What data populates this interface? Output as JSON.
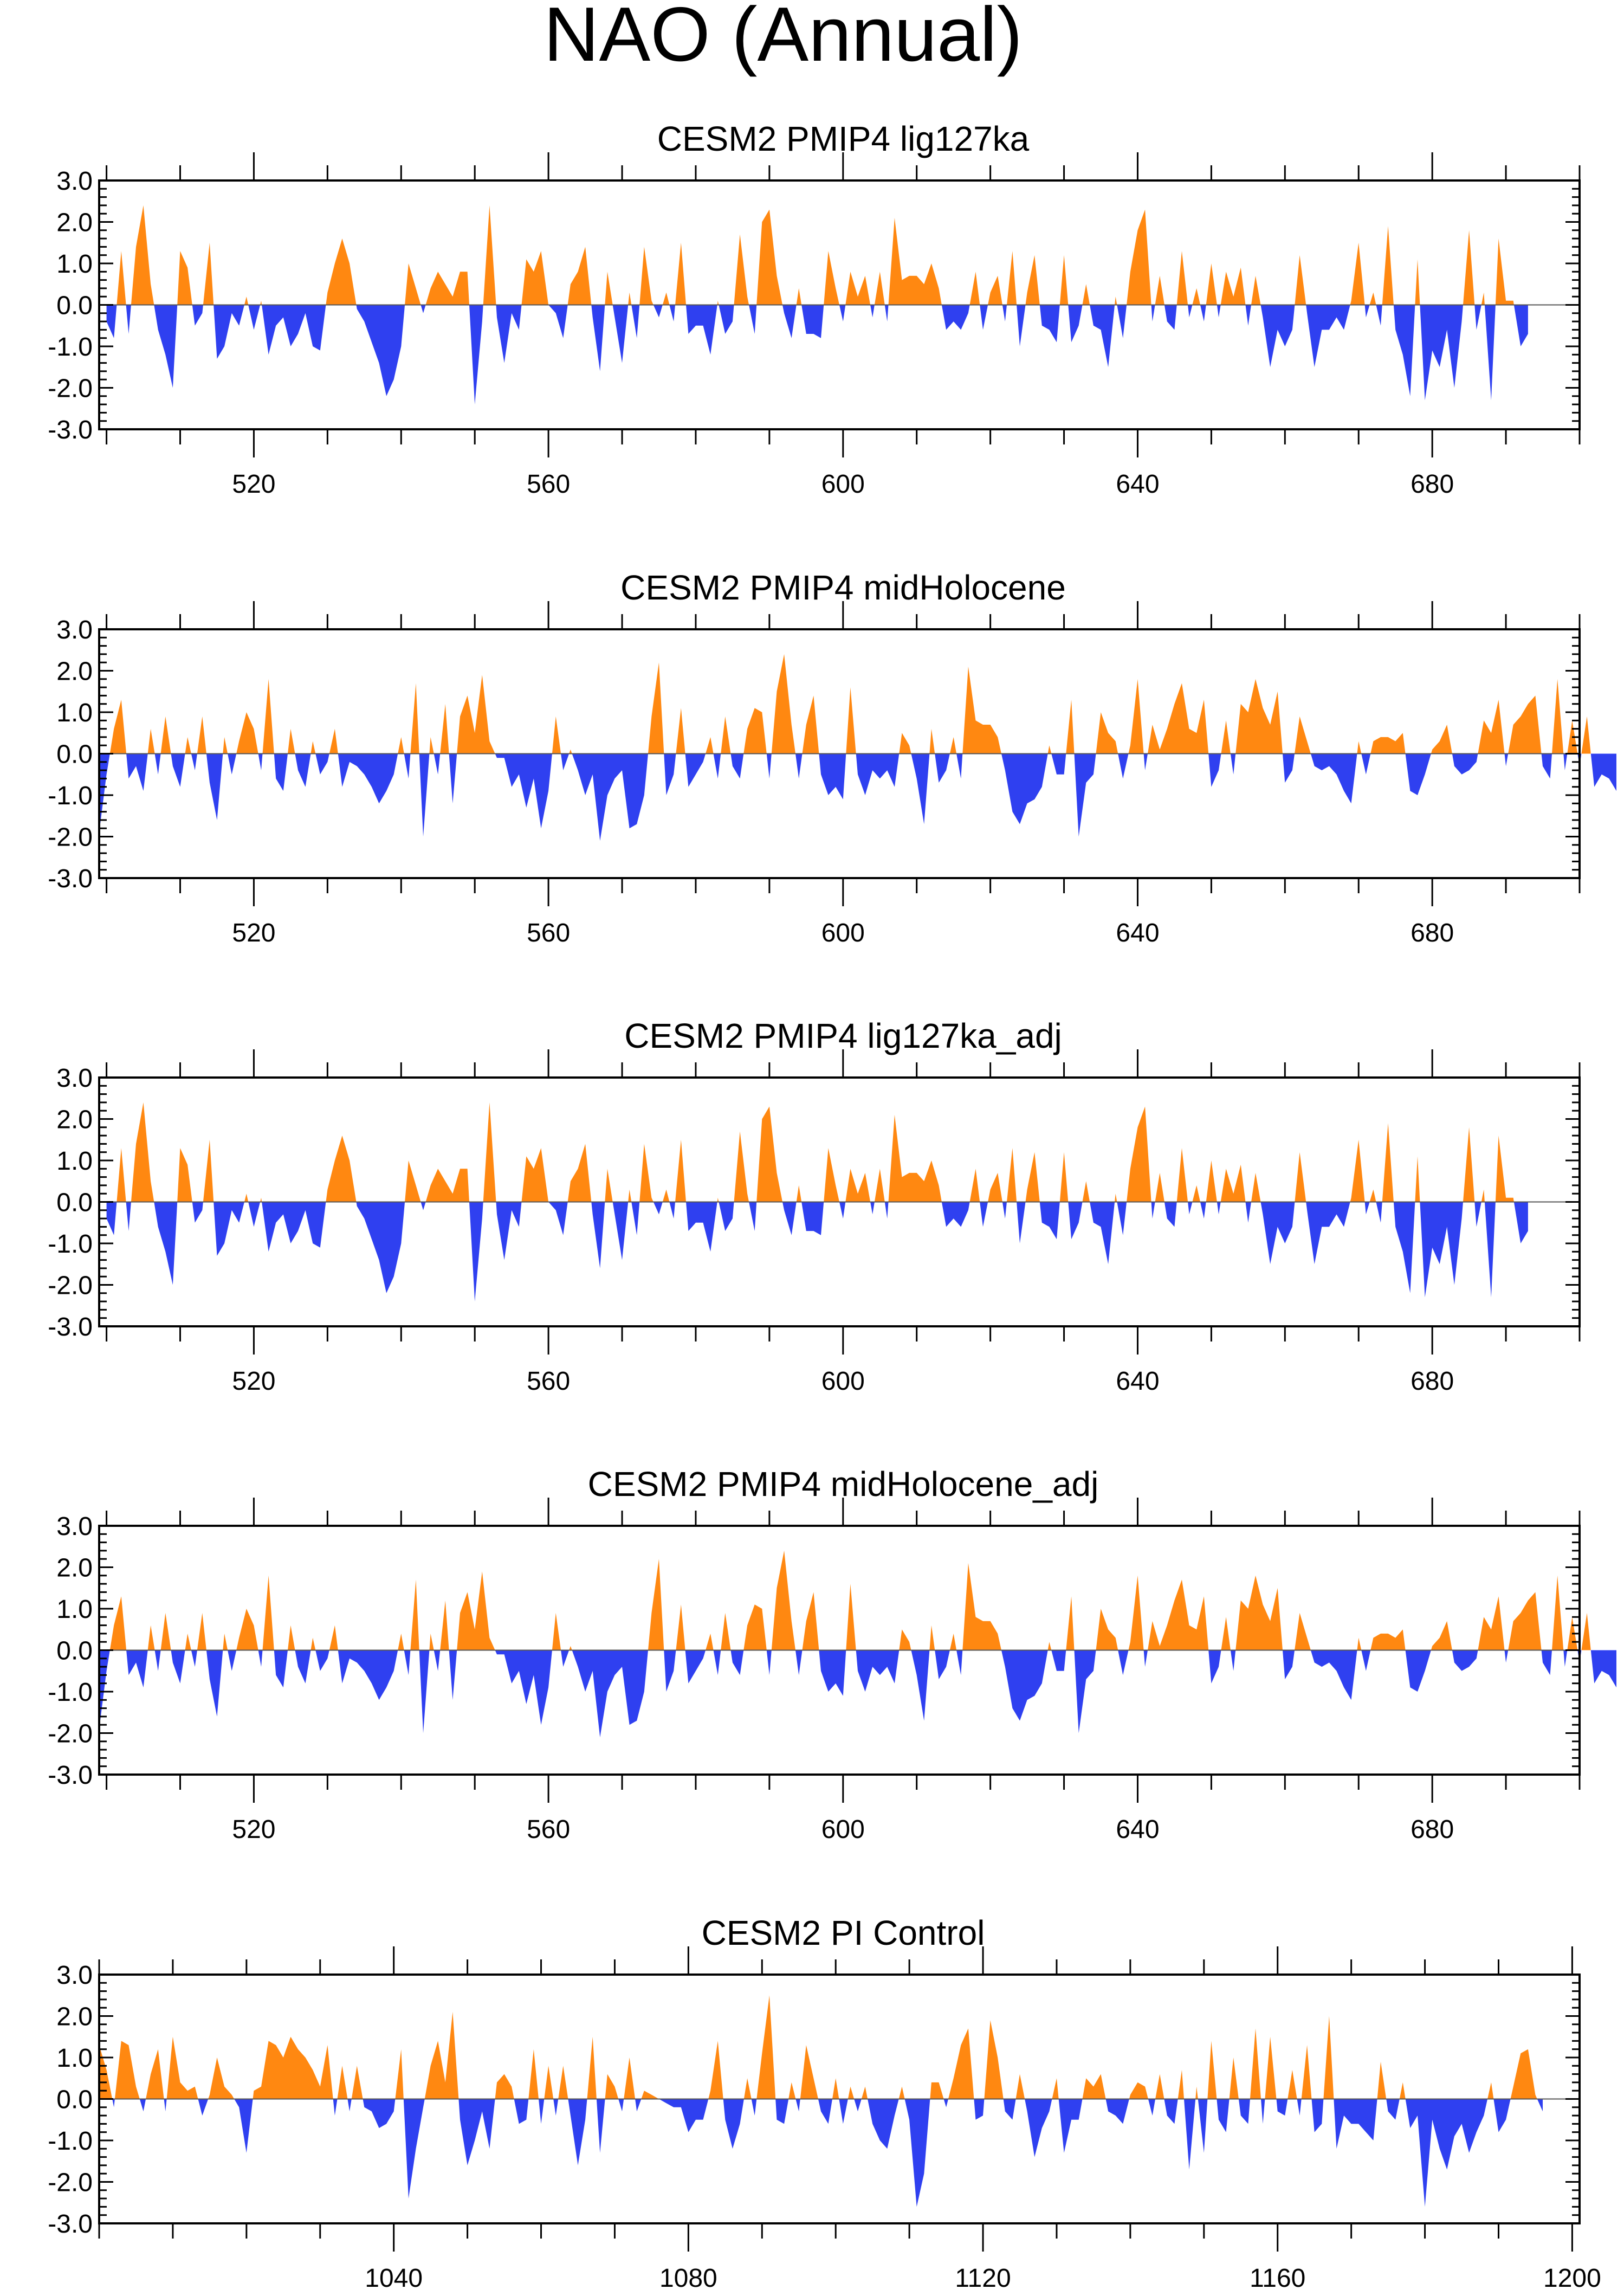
{
  "figure_title": "NAO (Annual)",
  "colors": {
    "positive": "#ff8811",
    "negative": "#2f40f0",
    "axis": "#000000"
  },
  "chart_data": [
    {
      "type": "area",
      "title": "CESM2 PMIP4 lig127ka",
      "xlim": [
        499,
        700
      ],
      "ylim": [
        -3.0,
        3.0
      ],
      "xticks": [
        520,
        560,
        600,
        640,
        680
      ],
      "xtick_labels": [
        "520",
        "560",
        "600",
        "640",
        "680"
      ],
      "yticks": [
        3.0,
        2.0,
        1.0,
        0.0,
        -1.0,
        -2.0,
        -3.0
      ],
      "ytick_labels": [
        "3.0",
        "2.0",
        "1.0",
        "0.0",
        "-1.0",
        "-2.0",
        "-3.0"
      ],
      "x_start": 500,
      "y": [
        -0.4,
        -0.8,
        1.3,
        -0.7,
        1.4,
        2.4,
        0.5,
        -0.6,
        -1.2,
        -2.0,
        1.3,
        0.9,
        -0.5,
        -0.2,
        1.5,
        -1.3,
        -1.0,
        -0.2,
        -0.5,
        0.2,
        -0.6,
        0.1,
        -1.2,
        -0.5,
        -0.3,
        -1.0,
        -0.7,
        -0.2,
        -1.0,
        -1.1,
        0.3,
        1.0,
        1.6,
        1.0,
        -0.1,
        -0.4,
        -0.9,
        -1.4,
        -2.2,
        -1.8,
        -1.0,
        1.0,
        0.4,
        -0.2,
        0.4,
        0.8,
        0.5,
        0.2,
        0.8,
        0.8,
        -2.4,
        -0.4,
        2.4,
        -0.3,
        -1.4,
        -0.2,
        -0.6,
        1.1,
        0.8,
        1.3,
        0.0,
        -0.2,
        -0.8,
        0.5,
        0.8,
        1.4,
        -0.3,
        -1.6,
        0.8,
        -0.3,
        -1.4,
        0.3,
        -0.8,
        1.4,
        0.1,
        -0.3,
        0.3,
        -0.4,
        1.5,
        -0.7,
        -0.5,
        -0.5,
        -1.2,
        0.1,
        -0.7,
        -0.4,
        1.7,
        0.2,
        -0.7,
        2.0,
        2.3,
        0.7,
        -0.2,
        -0.8,
        0.4,
        -0.7,
        -0.7,
        -0.8,
        1.3,
        0.4,
        -0.4,
        0.8,
        0.2,
        0.7,
        -0.3,
        0.8,
        -0.4,
        2.1,
        0.6,
        0.7,
        0.7,
        0.5,
        1.0,
        0.4,
        -0.6,
        -0.4,
        -0.6,
        -0.2,
        0.8,
        -0.6,
        0.3,
        0.7,
        -0.4,
        1.3,
        -1.0,
        0.3,
        1.2,
        -0.5,
        -0.6,
        -0.9,
        1.2,
        -0.9,
        -0.5,
        0.5,
        -0.5,
        -0.6,
        -1.5,
        0.2,
        -0.8,
        0.8,
        1.8,
        2.3,
        -0.4,
        0.7,
        -0.4,
        -0.6,
        1.3,
        -0.3,
        0.4,
        -0.4,
        1.0,
        -0.3,
        0.8,
        0.2,
        0.9,
        -0.5,
        0.7,
        -0.3,
        -1.5,
        -0.6,
        -1.0,
        -0.6,
        1.2,
        -0.2,
        -1.5,
        -0.6,
        -0.6,
        -0.3,
        -0.6,
        0.1,
        1.5,
        -0.3,
        0.3,
        -0.5,
        1.9,
        -0.6,
        -1.2,
        -2.2,
        1.1,
        -2.3,
        -1.1,
        -1.5,
        -0.6,
        -2.0,
        -0.4,
        1.8,
        -0.6,
        0.3,
        -2.3,
        1.6,
        0.1,
        0.1,
        -1.0,
        -0.7
      ]
    },
    {
      "type": "area",
      "title": "CESM2 PMIP4 midHolocene",
      "xlim": [
        499,
        700
      ],
      "ylim": [
        -3.0,
        3.0
      ],
      "xticks": [
        520,
        560,
        600,
        640,
        680
      ],
      "xtick_labels": [
        "520",
        "560",
        "600",
        "640",
        "680"
      ],
      "yticks": [
        3.0,
        2.0,
        1.0,
        0.0,
        -1.0,
        -2.0,
        -3.0
      ],
      "ytick_labels": [
        "3.0",
        "2.0",
        "1.0",
        "0.0",
        "-1.0",
        "-2.0",
        "-3.0"
      ],
      "x_start": 499,
      "y": [
        -1.9,
        -0.5,
        0.6,
        1.3,
        -0.6,
        -0.3,
        -0.9,
        0.6,
        -0.5,
        0.9,
        -0.3,
        -0.8,
        0.4,
        -0.4,
        0.9,
        -0.7,
        -1.6,
        0.4,
        -0.5,
        0.3,
        1.0,
        0.6,
        -0.4,
        1.8,
        -0.6,
        -0.9,
        0.6,
        -0.4,
        -0.8,
        0.3,
        -0.5,
        -0.2,
        0.6,
        -0.8,
        -0.2,
        -0.3,
        -0.5,
        -0.8,
        -1.2,
        -0.9,
        -0.5,
        0.4,
        -0.6,
        1.7,
        -2.0,
        0.4,
        -0.5,
        1.2,
        -1.2,
        0.9,
        1.4,
        0.5,
        1.9,
        0.3,
        -0.1,
        -0.1,
        -0.8,
        -0.5,
        -1.3,
        -0.6,
        -1.8,
        -0.9,
        0.9,
        -0.4,
        0.1,
        -0.4,
        -1.0,
        -0.5,
        -2.1,
        -1.0,
        -0.6,
        -0.4,
        -1.8,
        -1.7,
        -1.0,
        0.9,
        2.2,
        -1.0,
        -0.5,
        1.1,
        -0.8,
        -0.5,
        -0.2,
        0.4,
        -0.6,
        0.9,
        -0.3,
        -0.6,
        0.6,
        1.1,
        1.0,
        -0.6,
        1.5,
        2.4,
        0.7,
        -0.6,
        0.7,
        1.4,
        -0.5,
        -1.0,
        -0.8,
        -1.1,
        1.6,
        -0.5,
        -1.0,
        -0.4,
        -0.6,
        -0.4,
        -0.8,
        0.5,
        0.2,
        -0.6,
        -1.7,
        0.6,
        -0.7,
        -0.4,
        0.4,
        -0.6,
        2.1,
        0.8,
        0.7,
        0.7,
        0.4,
        -0.4,
        -1.4,
        -1.7,
        -1.2,
        -1.1,
        -0.8,
        0.2,
        -0.5,
        -0.5,
        1.3,
        -2.0,
        -0.7,
        -0.5,
        1.0,
        0.5,
        0.3,
        -0.6,
        0.2,
        1.8,
        -0.4,
        0.7,
        0.1,
        0.6,
        1.2,
        1.7,
        0.6,
        0.5,
        1.3,
        -0.8,
        -0.4,
        0.8,
        -0.5,
        1.2,
        1.0,
        1.8,
        1.1,
        0.7,
        1.5,
        -0.7,
        -0.4,
        0.9,
        0.3,
        -0.3,
        -0.4,
        -0.3,
        -0.5,
        -0.9,
        -1.2,
        0.3,
        -0.5,
        0.3,
        0.4,
        0.4,
        0.3,
        0.5,
        -0.9,
        -1.0,
        -0.5,
        0.1,
        0.3,
        0.7,
        -0.3,
        -0.5,
        -0.4,
        -0.2,
        0.8,
        0.5,
        1.3,
        -0.3,
        0.7,
        0.9,
        1.2,
        1.4,
        -0.3,
        -0.6,
        1.8,
        -0.4,
        0.8,
        -0.3,
        0.9,
        -0.8,
        -0.5,
        -0.6,
        -0.9
      ]
    },
    {
      "type": "area",
      "title": "CESM2 PMIP4 lig127ka_adj",
      "xlim": [
        499,
        700
      ],
      "ylim": [
        -3.0,
        3.0
      ],
      "xticks": [
        520,
        560,
        600,
        640,
        680
      ],
      "xtick_labels": [
        "520",
        "560",
        "600",
        "640",
        "680"
      ],
      "yticks": [
        3.0,
        2.0,
        1.0,
        0.0,
        -1.0,
        -2.0,
        -3.0
      ],
      "ytick_labels": [
        "3.0",
        "2.0",
        "1.0",
        "0.0",
        "-1.0",
        "-2.0",
        "-3.0"
      ],
      "x_start": 500,
      "y": [
        -0.4,
        -0.8,
        1.3,
        -0.7,
        1.4,
        2.4,
        0.5,
        -0.6,
        -1.2,
        -2.0,
        1.3,
        0.9,
        -0.5,
        -0.2,
        1.5,
        -1.3,
        -1.0,
        -0.2,
        -0.5,
        0.2,
        -0.6,
        0.1,
        -1.2,
        -0.5,
        -0.3,
        -1.0,
        -0.7,
        -0.2,
        -1.0,
        -1.1,
        0.3,
        1.0,
        1.6,
        1.0,
        -0.1,
        -0.4,
        -0.9,
        -1.4,
        -2.2,
        -1.8,
        -1.0,
        1.0,
        0.4,
        -0.2,
        0.4,
        0.8,
        0.5,
        0.2,
        0.8,
        0.8,
        -2.4,
        -0.4,
        2.4,
        -0.3,
        -1.4,
        -0.2,
        -0.6,
        1.1,
        0.8,
        1.3,
        0.0,
        -0.2,
        -0.8,
        0.5,
        0.8,
        1.4,
        -0.3,
        -1.6,
        0.8,
        -0.3,
        -1.4,
        0.3,
        -0.8,
        1.4,
        0.1,
        -0.3,
        0.3,
        -0.4,
        1.5,
        -0.7,
        -0.5,
        -0.5,
        -1.2,
        0.1,
        -0.7,
        -0.4,
        1.7,
        0.2,
        -0.7,
        2.0,
        2.3,
        0.7,
        -0.2,
        -0.8,
        0.4,
        -0.7,
        -0.7,
        -0.8,
        1.3,
        0.4,
        -0.4,
        0.8,
        0.2,
        0.7,
        -0.3,
        0.8,
        -0.4,
        2.1,
        0.6,
        0.7,
        0.7,
        0.5,
        1.0,
        0.4,
        -0.6,
        -0.4,
        -0.6,
        -0.2,
        0.8,
        -0.6,
        0.3,
        0.7,
        -0.4,
        1.3,
        -1.0,
        0.3,
        1.2,
        -0.5,
        -0.6,
        -0.9,
        1.2,
        -0.9,
        -0.5,
        0.5,
        -0.5,
        -0.6,
        -1.5,
        0.2,
        -0.8,
        0.8,
        1.8,
        2.3,
        -0.4,
        0.7,
        -0.4,
        -0.6,
        1.3,
        -0.3,
        0.4,
        -0.4,
        1.0,
        -0.3,
        0.8,
        0.2,
        0.9,
        -0.5,
        0.7,
        -0.3,
        -1.5,
        -0.6,
        -1.0,
        -0.6,
        1.2,
        -0.2,
        -1.5,
        -0.6,
        -0.6,
        -0.3,
        -0.6,
        0.1,
        1.5,
        -0.3,
        0.3,
        -0.5,
        1.9,
        -0.6,
        -1.2,
        -2.2,
        1.1,
        -2.3,
        -1.1,
        -1.5,
        -0.6,
        -2.0,
        -0.4,
        1.8,
        -0.6,
        0.3,
        -2.3,
        1.6,
        0.1,
        0.1,
        -1.0,
        -0.7
      ]
    },
    {
      "type": "area",
      "title": "CESM2 PMIP4 midHolocene_adj",
      "xlim": [
        499,
        700
      ],
      "ylim": [
        -3.0,
        3.0
      ],
      "xticks": [
        520,
        560,
        600,
        640,
        680
      ],
      "xtick_labels": [
        "520",
        "560",
        "600",
        "640",
        "680"
      ],
      "yticks": [
        3.0,
        2.0,
        1.0,
        0.0,
        -1.0,
        -2.0,
        -3.0
      ],
      "ytick_labels": [
        "3.0",
        "2.0",
        "1.0",
        "0.0",
        "-1.0",
        "-2.0",
        "-3.0"
      ],
      "x_start": 499,
      "y": [
        -1.9,
        -0.5,
        0.6,
        1.3,
        -0.6,
        -0.3,
        -0.9,
        0.6,
        -0.5,
        0.9,
        -0.3,
        -0.8,
        0.4,
        -0.4,
        0.9,
        -0.7,
        -1.6,
        0.4,
        -0.5,
        0.3,
        1.0,
        0.6,
        -0.4,
        1.8,
        -0.6,
        -0.9,
        0.6,
        -0.4,
        -0.8,
        0.3,
        -0.5,
        -0.2,
        0.6,
        -0.8,
        -0.2,
        -0.3,
        -0.5,
        -0.8,
        -1.2,
        -0.9,
        -0.5,
        0.4,
        -0.6,
        1.7,
        -2.0,
        0.4,
        -0.5,
        1.2,
        -1.2,
        0.9,
        1.4,
        0.5,
        1.9,
        0.3,
        -0.1,
        -0.1,
        -0.8,
        -0.5,
        -1.3,
        -0.6,
        -1.8,
        -0.9,
        0.9,
        -0.4,
        0.1,
        -0.4,
        -1.0,
        -0.5,
        -2.1,
        -1.0,
        -0.6,
        -0.4,
        -1.8,
        -1.7,
        -1.0,
        0.9,
        2.2,
        -1.0,
        -0.5,
        1.1,
        -0.8,
        -0.5,
        -0.2,
        0.4,
        -0.6,
        0.9,
        -0.3,
        -0.6,
        0.6,
        1.1,
        1.0,
        -0.6,
        1.5,
        2.4,
        0.7,
        -0.6,
        0.7,
        1.4,
        -0.5,
        -1.0,
        -0.8,
        -1.1,
        1.6,
        -0.5,
        -1.0,
        -0.4,
        -0.6,
        -0.4,
        -0.8,
        0.5,
        0.2,
        -0.6,
        -1.7,
        0.6,
        -0.7,
        -0.4,
        0.4,
        -0.6,
        2.1,
        0.8,
        0.7,
        0.7,
        0.4,
        -0.4,
        -1.4,
        -1.7,
        -1.2,
        -1.1,
        -0.8,
        0.2,
        -0.5,
        -0.5,
        1.3,
        -2.0,
        -0.7,
        -0.5,
        1.0,
        0.5,
        0.3,
        -0.6,
        0.2,
        1.8,
        -0.4,
        0.7,
        0.1,
        0.6,
        1.2,
        1.7,
        0.6,
        0.5,
        1.3,
        -0.8,
        -0.4,
        0.8,
        -0.5,
        1.2,
        1.0,
        1.8,
        1.1,
        0.7,
        1.5,
        -0.7,
        -0.4,
        0.9,
        0.3,
        -0.3,
        -0.4,
        -0.3,
        -0.5,
        -0.9,
        -1.2,
        0.3,
        -0.5,
        0.3,
        0.4,
        0.4,
        0.3,
        0.5,
        -0.9,
        -1.0,
        -0.5,
        0.1,
        0.3,
        0.7,
        -0.3,
        -0.5,
        -0.4,
        -0.2,
        0.8,
        0.5,
        1.3,
        -0.3,
        0.7,
        0.9,
        1.2,
        1.4,
        -0.3,
        -0.6,
        1.8,
        -0.4,
        0.8,
        -0.3,
        0.9,
        -0.8,
        -0.5,
        -0.6,
        -0.9
      ]
    },
    {
      "type": "area",
      "title": "CESM2 PI Control",
      "xlim": [
        1000,
        1201
      ],
      "ylim": [
        -3.0,
        3.0
      ],
      "xticks": [
        1040,
        1080,
        1120,
        1160,
        1200
      ],
      "xtick_labels": [
        "1040",
        "1080",
        "1120",
        "1160",
        "1200"
      ],
      "yticks": [
        3.0,
        2.0,
        1.0,
        0.0,
        -1.0,
        -2.0,
        -3.0
      ],
      "ytick_labels": [
        "3.0",
        "2.0",
        "1.0",
        "0.0",
        "-1.0",
        "-2.0",
        "-3.0"
      ],
      "x_start": 1000,
      "y": [
        1.3,
        0.7,
        -0.2,
        1.4,
        1.3,
        0.3,
        -0.3,
        0.6,
        1.2,
        -0.3,
        1.5,
        0.4,
        0.2,
        0.3,
        -0.4,
        0.1,
        1.0,
        0.3,
        0.1,
        -0.2,
        -1.3,
        0.2,
        0.3,
        1.4,
        1.3,
        1.0,
        1.5,
        1.2,
        1.0,
        0.7,
        0.3,
        1.3,
        -0.4,
        0.8,
        -0.3,
        0.8,
        -0.2,
        -0.3,
        -0.7,
        -0.6,
        -0.3,
        1.2,
        -2.4,
        -1.2,
        -0.2,
        0.8,
        1.4,
        0.4,
        2.1,
        -0.5,
        -1.6,
        -1.0,
        -0.3,
        -1.2,
        0.4,
        0.6,
        0.3,
        -0.6,
        -0.5,
        1.2,
        -0.6,
        0.8,
        -0.4,
        0.8,
        -0.4,
        -1.6,
        -0.5,
        1.5,
        -1.3,
        0.6,
        0.3,
        -0.3,
        1.0,
        -0.3,
        0.2,
        0.1,
        0.0,
        -0.1,
        -0.2,
        -0.2,
        -0.8,
        -0.5,
        -0.5,
        0.2,
        1.4,
        -0.5,
        -1.2,
        -0.6,
        0.5,
        -0.4,
        1.1,
        2.5,
        -0.5,
        -0.6,
        0.4,
        -0.3,
        1.3,
        0.5,
        -0.3,
        -0.6,
        0.5,
        -0.6,
        0.3,
        -0.3,
        0.3,
        -0.6,
        -1.0,
        -1.2,
        -0.4,
        0.3,
        -0.5,
        -2.6,
        -1.8,
        0.4,
        0.4,
        -0.2,
        0.5,
        1.3,
        1.7,
        -0.5,
        -0.4,
        1.9,
        1.0,
        -0.3,
        -0.5,
        0.6,
        -0.3,
        -1.4,
        -0.7,
        -0.3,
        0.5,
        -1.3,
        -0.5,
        -0.5,
        0.5,
        0.3,
        0.6,
        -0.3,
        -0.4,
        -0.6,
        0.1,
        0.4,
        0.3,
        -0.4,
        0.6,
        -0.4,
        -0.6,
        0.7,
        -1.7,
        0.3,
        -1.3,
        1.4,
        -0.5,
        -0.8,
        1.0,
        -0.4,
        -0.6,
        1.7,
        -0.6,
        1.5,
        -0.3,
        -0.4,
        0.7,
        -0.4,
        1.3,
        -0.8,
        -0.6,
        2.0,
        -1.2,
        -0.4,
        -0.6,
        -0.6,
        -0.8,
        -1.0,
        0.9,
        -0.3,
        -0.5,
        0.4,
        -0.7,
        -0.4,
        -2.6,
        -0.5,
        -1.2,
        -1.7,
        -0.9,
        -0.6,
        -1.3,
        -0.8,
        -0.4,
        0.4,
        -0.8,
        -0.5,
        0.3,
        1.1,
        1.2,
        0.1,
        -0.3
      ]
    }
  ]
}
